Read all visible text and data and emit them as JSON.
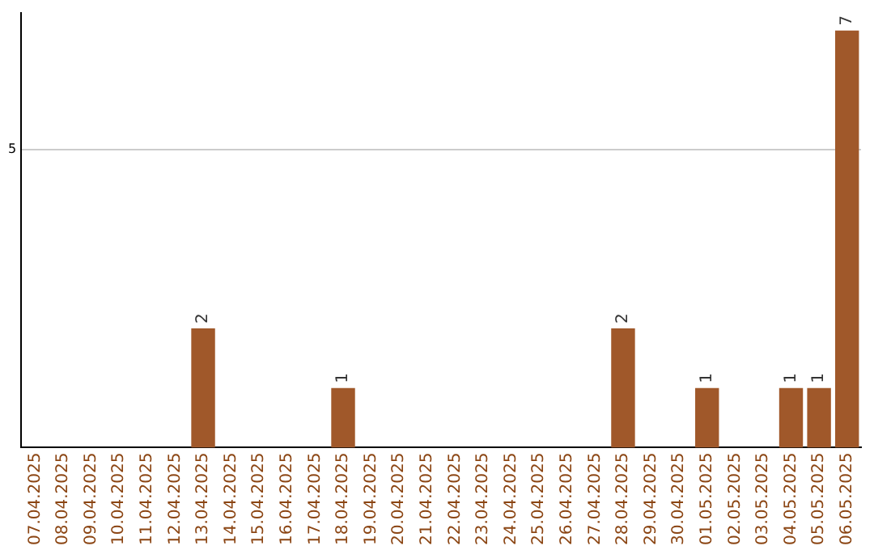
{
  "chart_data": {
    "type": "bar",
    "categories": [
      "07.04.2025",
      "08.04.2025",
      "09.04.2025",
      "10.04.2025",
      "11.04.2025",
      "12.04.2025",
      "13.04.2025",
      "14.04.2025",
      "15.04.2025",
      "16.04.2025",
      "17.04.2025",
      "18.04.2025",
      "19.04.2025",
      "20.04.2025",
      "21.04.2025",
      "22.04.2025",
      "23.04.2025",
      "24.04.2025",
      "25.04.2025",
      "26.04.2025",
      "27.04.2025",
      "28.04.2025",
      "29.04.2025",
      "30.04.2025",
      "01.05.2025",
      "02.05.2025",
      "03.05.2025",
      "04.05.2025",
      "05.05.2025",
      "06.05.2025"
    ],
    "values": [
      0,
      0,
      0,
      0,
      0,
      0,
      2,
      0,
      0,
      0,
      0,
      1,
      0,
      0,
      0,
      0,
      0,
      0,
      0,
      0,
      0,
      2,
      0,
      0,
      1,
      0,
      0,
      1,
      1,
      7
    ],
    "value_labels": [
      null,
      null,
      null,
      null,
      null,
      null,
      "2",
      null,
      null,
      null,
      null,
      "1",
      null,
      null,
      null,
      null,
      null,
      null,
      null,
      null,
      null,
      "2",
      null,
      null,
      "1",
      null,
      null,
      "1",
      "1",
      "7"
    ],
    "color": "#a0582a",
    "ylim": [
      0,
      7.3
    ],
    "yticks": [
      5
    ],
    "grid": "y",
    "legend": false
  }
}
